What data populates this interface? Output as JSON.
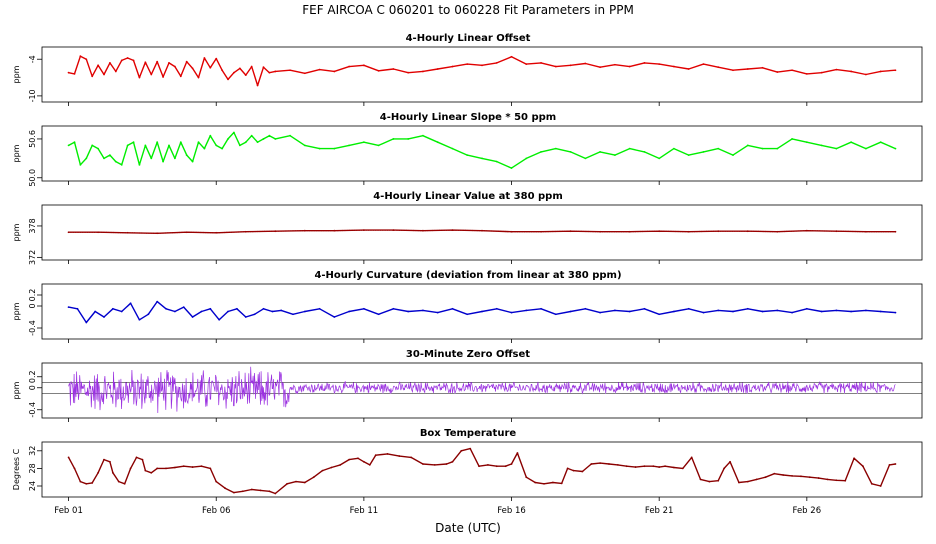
{
  "figure": {
    "title": "FEF   AIRCOA C   060201 to 060228   Fit Parameters in PPM",
    "xlabel": "Date (UTC)",
    "x_ticks": [
      "Feb 01",
      "Feb 06",
      "Feb 11",
      "Feb 16",
      "Feb 21",
      "Feb 26"
    ],
    "x_tick_days": [
      1,
      6,
      11,
      16,
      21,
      26
    ],
    "x_range_days": [
      0.1,
      29.9
    ]
  },
  "chart_data": [
    {
      "type": "line",
      "title": "4-Hourly Linear Offset",
      "ylabel": "ppm",
      "ylim": [
        -11,
        -2
      ],
      "yticks": [
        -10,
        -4
      ],
      "ytick_labels": [
        "-10",
        "-4"
      ],
      "color": "#e00000",
      "style": "line",
      "series": [
        {
          "x": [
            1.0,
            1.2,
            1.4,
            1.6,
            1.8,
            2.0,
            2.2,
            2.4,
            2.6,
            2.8,
            3.0,
            3.2,
            3.4,
            3.6,
            3.8,
            4.0,
            4.2,
            4.4,
            4.6,
            4.8,
            5.0,
            5.2,
            5.4,
            5.6,
            5.8,
            6.0,
            6.2,
            6.4,
            6.6,
            6.8,
            7.0,
            7.2,
            7.4,
            7.6,
            7.8,
            8.0,
            8.5,
            9,
            9.5,
            10,
            10.5,
            11,
            11.5,
            12,
            12.5,
            13,
            13.5,
            14,
            14.5,
            15,
            15.5,
            16,
            16.5,
            17,
            17.5,
            18,
            18.5,
            19,
            19.5,
            20,
            20.5,
            21,
            21.5,
            22,
            22.5,
            23,
            23.5,
            24,
            24.5,
            25,
            25.5,
            26,
            26.5,
            27,
            27.5,
            28,
            28.5,
            29
          ],
          "values": [
            -6.2,
            -6.4,
            -3.5,
            -4.0,
            -6.8,
            -5.0,
            -6.5,
            -4.6,
            -6.0,
            -4.2,
            -3.8,
            -4.2,
            -7.0,
            -4.5,
            -6.5,
            -4.4,
            -6.9,
            -4.6,
            -5.2,
            -6.8,
            -4.4,
            -5.5,
            -7.0,
            -3.8,
            -5.4,
            -3.9,
            -5.8,
            -7.3,
            -6.2,
            -5.5,
            -6.6,
            -5.2,
            -8.3,
            -5.3,
            -6.2,
            -6.0,
            -5.8,
            -6.3,
            -5.7,
            -6.0,
            -5.2,
            -5.0,
            -5.9,
            -5.6,
            -6.2,
            -6.0,
            -5.6,
            -5.2,
            -4.8,
            -5.0,
            -4.6,
            -3.6,
            -4.8,
            -4.6,
            -5.2,
            -5.0,
            -4.7,
            -5.3,
            -4.9,
            -5.2,
            -4.6,
            -4.8,
            -5.2,
            -5.6,
            -4.8,
            -5.3,
            -5.8,
            -5.6,
            -5.4,
            -6.1,
            -5.8,
            -6.4,
            -6.2,
            -5.7,
            -6.0,
            -6.5,
            -6.0,
            -5.8
          ]
        }
      ]
    },
    {
      "type": "line",
      "title": "4-Hourly Linear Slope * 50 ppm",
      "ylabel": "ppm",
      "ylim": [
        49.95,
        50.8
      ],
      "yticks": [
        50.0,
        50.6
      ],
      "ytick_labels": [
        "50.0",
        "50.6"
      ],
      "color": "#00ee00",
      "style": "line",
      "series": [
        {
          "x": [
            1.0,
            1.2,
            1.4,
            1.6,
            1.8,
            2.0,
            2.2,
            2.4,
            2.6,
            2.8,
            3.0,
            3.2,
            3.4,
            3.6,
            3.8,
            4.0,
            4.2,
            4.4,
            4.6,
            4.8,
            5.0,
            5.2,
            5.4,
            5.6,
            5.8,
            6.0,
            6.2,
            6.4,
            6.6,
            6.8,
            7.0,
            7.2,
            7.4,
            7.6,
            7.8,
            8.0,
            8.5,
            9,
            9.5,
            10,
            10.5,
            11,
            11.5,
            12,
            12.5,
            13,
            13.5,
            14,
            14.5,
            15,
            15.5,
            16,
            16.5,
            17,
            17.5,
            18,
            18.5,
            19,
            19.5,
            20,
            20.5,
            21,
            21.5,
            22,
            22.5,
            23,
            23.5,
            24,
            24.5,
            25,
            25.5,
            26,
            26.5,
            27,
            27.5,
            28,
            28.5,
            29
          ],
          "values": [
            50.5,
            50.55,
            50.2,
            50.3,
            50.5,
            50.45,
            50.3,
            50.35,
            50.25,
            50.2,
            50.5,
            50.55,
            50.2,
            50.5,
            50.3,
            50.55,
            50.25,
            50.5,
            50.3,
            50.55,
            50.35,
            50.25,
            50.55,
            50.45,
            50.65,
            50.5,
            50.45,
            50.6,
            50.7,
            50.5,
            50.55,
            50.65,
            50.55,
            50.6,
            50.65,
            50.6,
            50.65,
            50.5,
            50.45,
            50.45,
            50.5,
            50.55,
            50.5,
            50.6,
            50.6,
            50.65,
            50.55,
            50.45,
            50.35,
            50.3,
            50.25,
            50.15,
            50.3,
            50.4,
            50.45,
            50.4,
            50.3,
            50.4,
            50.35,
            50.45,
            50.4,
            50.3,
            50.45,
            50.35,
            50.4,
            50.45,
            50.35,
            50.5,
            50.45,
            50.45,
            50.6,
            50.55,
            50.5,
            50.45,
            50.55,
            50.45,
            50.55,
            50.45
          ]
        }
      ]
    },
    {
      "type": "line",
      "title": "4-Hourly Linear Value at 380 ppm",
      "ylabel": "ppm",
      "ylim": [
        371.5,
        382
      ],
      "yticks": [
        372,
        378
      ],
      "ytick_labels": [
        "372",
        "378"
      ],
      "color": "#9a0000",
      "style": "line",
      "series": [
        {
          "x": [
            1,
            2,
            3,
            4,
            5,
            6,
            7,
            8,
            9,
            10,
            11,
            12,
            13,
            14,
            15,
            16,
            17,
            18,
            19,
            20,
            21,
            22,
            23,
            24,
            25,
            26,
            27,
            28,
            29
          ],
          "values": [
            376.8,
            376.8,
            376.7,
            376.6,
            376.8,
            376.7,
            376.9,
            377.0,
            377.1,
            377.1,
            377.2,
            377.2,
            377.1,
            377.2,
            377.1,
            376.9,
            376.9,
            377.0,
            376.9,
            376.9,
            377.0,
            376.9,
            377.0,
            377.0,
            376.9,
            377.1,
            377.0,
            376.9,
            376.9
          ]
        }
      ]
    },
    {
      "type": "line",
      "title": "4-Hourly Curvature (deviation from linear at 380 ppm)",
      "ylabel": "ppm",
      "ylim": [
        -0.6,
        0.4
      ],
      "yticks": [
        -0.4,
        0.0,
        0.2
      ],
      "ytick_labels": [
        "-0.4",
        "0",
        "0.2"
      ],
      "color": "#0000cc",
      "style": "line",
      "series": [
        {
          "x": [
            1.0,
            1.3,
            1.6,
            1.9,
            2.2,
            2.5,
            2.8,
            3.1,
            3.4,
            3.7,
            4.0,
            4.3,
            4.6,
            4.9,
            5.2,
            5.5,
            5.8,
            6.1,
            6.4,
            6.7,
            7.0,
            7.3,
            7.6,
            7.9,
            8.2,
            8.6,
            9,
            9.5,
            10,
            10.5,
            11,
            11.5,
            12,
            12.5,
            13,
            13.5,
            14,
            14.5,
            15,
            15.5,
            16,
            16.5,
            17,
            17.5,
            18,
            18.5,
            19,
            19.5,
            20,
            20.5,
            21,
            21.5,
            22,
            22.5,
            23,
            23.5,
            24,
            24.5,
            25,
            25.5,
            26,
            26.5,
            27,
            27.5,
            28,
            28.5,
            29
          ],
          "values": [
            -0.02,
            -0.05,
            -0.3,
            -0.1,
            -0.2,
            -0.05,
            -0.1,
            0.05,
            -0.25,
            -0.15,
            0.08,
            -0.05,
            -0.1,
            -0.02,
            -0.2,
            -0.1,
            -0.05,
            -0.25,
            -0.1,
            -0.05,
            -0.2,
            -0.15,
            -0.05,
            -0.1,
            -0.08,
            -0.15,
            -0.1,
            -0.05,
            -0.2,
            -0.1,
            -0.05,
            -0.15,
            -0.05,
            -0.1,
            -0.08,
            -0.12,
            -0.05,
            -0.15,
            -0.1,
            -0.05,
            -0.12,
            -0.08,
            -0.05,
            -0.15,
            -0.1,
            -0.05,
            -0.12,
            -0.08,
            -0.1,
            -0.05,
            -0.15,
            -0.1,
            -0.05,
            -0.12,
            -0.08,
            -0.1,
            -0.05,
            -0.1,
            -0.08,
            -0.12,
            -0.05,
            -0.1,
            -0.08,
            -0.1,
            -0.08,
            -0.1,
            -0.12
          ]
        }
      ]
    },
    {
      "type": "line",
      "title": "30-Minute Zero Offset",
      "ylabel": "ppm",
      "ylim": [
        -0.55,
        0.45
      ],
      "yticks": [
        -0.4,
        0.0,
        0.2
      ],
      "ytick_labels": [
        "-0.4",
        "0",
        "0.2"
      ],
      "reference_lines": [
        0.1,
        -0.1
      ],
      "color": "#9a30e0",
      "style": "points",
      "noise": {
        "start_day": 1,
        "end_day": 29,
        "points_per_day": 48,
        "amplitude_early": 0.45,
        "amplitude_late": 0.12,
        "transition_day": 8.5,
        "early_center": -0.05,
        "late_center": 0.0
      }
    },
    {
      "type": "line",
      "title": "Box Temperature",
      "ylabel": "Degrees C",
      "ylim": [
        21.5,
        34
      ],
      "yticks": [
        24,
        28,
        32
      ],
      "ytick_labels": [
        "24",
        "28",
        "32"
      ],
      "color": "#8a0000",
      "style": "line",
      "series": [
        {
          "x": [
            1.0,
            1.2,
            1.4,
            1.6,
            1.8,
            2.0,
            2.2,
            2.4,
            2.5,
            2.7,
            2.9,
            3.1,
            3.3,
            3.5,
            3.6,
            3.8,
            4.0,
            4.3,
            4.6,
            4.9,
            5.2,
            5.5,
            5.8,
            6.0,
            6.3,
            6.6,
            6.9,
            7.2,
            7.5,
            7.8,
            8.0,
            8.4,
            8.7,
            9.0,
            9.3,
            9.6,
            9.9,
            10.2,
            10.5,
            10.8,
            11.0,
            11.2,
            11.4,
            11.8,
            12.2,
            12.6,
            13.0,
            13.4,
            13.8,
            14.0,
            14.3,
            14.6,
            14.9,
            15.2,
            15.5,
            15.8,
            16.0,
            16.2,
            16.5,
            16.8,
            17.1,
            17.4,
            17.7,
            17.9,
            18.1,
            18.4,
            18.7,
            19.0,
            19.3,
            19.6,
            19.9,
            20.2,
            20.5,
            20.8,
            21.0,
            21.2,
            21.5,
            21.8,
            22.1,
            22.4,
            22.7,
            23.0,
            23.2,
            23.4,
            23.7,
            24.0,
            24.3,
            24.6,
            24.9,
            25.2,
            25.5,
            25.8,
            26.1,
            26.4,
            26.7,
            27.0,
            27.3,
            27.6,
            27.9,
            28.2,
            28.5,
            28.8,
            29.0
          ],
          "values": [
            30.5,
            28,
            25,
            24.5,
            24.7,
            27,
            30,
            29.5,
            27,
            25,
            24.5,
            28,
            30.5,
            30,
            27.5,
            27,
            28,
            28,
            28.2,
            28.5,
            28.3,
            28.5,
            28,
            25,
            23.5,
            22.5,
            22.8,
            23.2,
            23,
            22.8,
            22.3,
            24.5,
            25,
            24.8,
            26,
            27.5,
            28.2,
            28.8,
            30,
            30.3,
            29.5,
            28.8,
            31,
            31.3,
            30.8,
            30.5,
            29,
            28.8,
            29,
            29.5,
            32,
            32.5,
            28.5,
            28.8,
            28.5,
            28.5,
            29,
            31.5,
            26,
            24.8,
            24.5,
            24.8,
            24.6,
            28,
            27.5,
            27.3,
            29,
            29.2,
            29,
            28.8,
            28.5,
            28.3,
            28.5,
            28.5,
            28.3,
            28.5,
            28.2,
            28,
            30.5,
            25.5,
            25,
            25.2,
            28,
            29.5,
            24.8,
            25,
            25.5,
            26,
            26.8,
            26.5,
            26.3,
            26.2,
            26,
            25.8,
            25.5,
            25.3,
            25.2,
            30.3,
            28.5,
            24.5,
            24,
            28.8,
            29
          ]
        }
      ]
    }
  ]
}
